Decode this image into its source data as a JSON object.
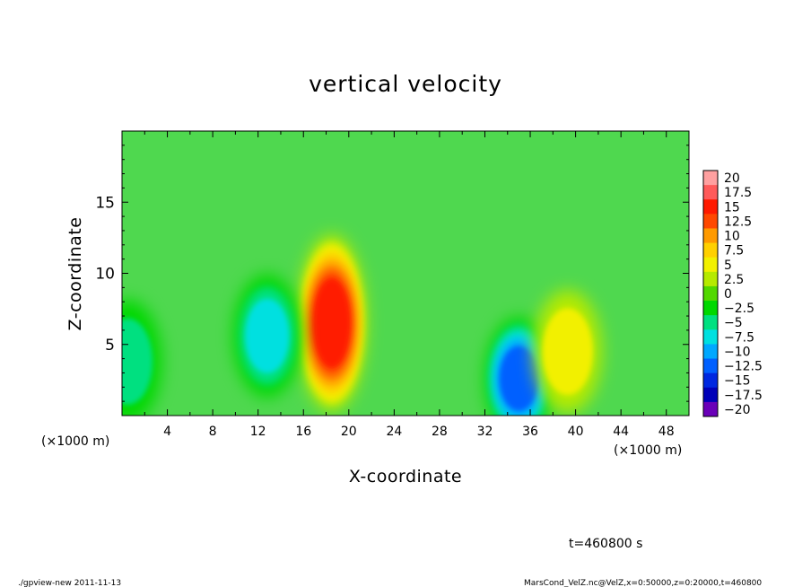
{
  "chart_data": {
    "type": "heatmap",
    "title": "vertical velocity",
    "xlabel": "X-coordinate",
    "ylabel": "Z-coordinate",
    "x_unit": "(×1000 m)",
    "y_unit": "(×1000 m)",
    "xlim": [
      0,
      50
    ],
    "ylim": [
      0,
      20
    ],
    "x_ticks": [
      4,
      8,
      12,
      16,
      20,
      24,
      28,
      32,
      36,
      40,
      44,
      48
    ],
    "y_ticks": [
      5,
      10,
      15
    ],
    "colorbar": {
      "levels": [
        "20",
        "17.5",
        "15",
        "12.5",
        "10",
        "7.5",
        "5",
        "2.5",
        "0",
        "−2.5",
        "−5",
        "−7.5",
        "−10",
        "−12.5",
        "−15",
        "−17.5",
        "−20"
      ],
      "colors": [
        "#ffa0a0",
        "#ff5a5a",
        "#ff1a00",
        "#ff4800",
        "#ff9a00",
        "#ffd000",
        "#f2f000",
        "#b6ea00",
        "#52d800",
        "#00d800",
        "#00e080",
        "#00e0e0",
        "#00a8ff",
        "#0060ff",
        "#0028e0",
        "#0000b8",
        "#6a00b8"
      ]
    },
    "background_color": "#4fd84f",
    "features": [
      {
        "type": "updraft",
        "x": 18.5,
        "z": 6.5,
        "peak": 15
      },
      {
        "type": "downdraft",
        "x": 35,
        "z": 2.6,
        "peak": -12
      },
      {
        "type": "downdraft",
        "x": 12.8,
        "z": 5.6,
        "peak": -7.5
      },
      {
        "type": "updraft",
        "x": 39.3,
        "z": 4.5,
        "peak": 6
      },
      {
        "type": "downdraft",
        "x": 0.5,
        "z": 3.8,
        "peak": -5
      }
    ]
  },
  "annotations": {
    "time": "t=460800 s",
    "footer_left": "./gpview-new   2011-11-13",
    "footer_right": "MarsCond_VelZ.nc@VelZ,x=0:50000,z=0:20000,t=460800"
  }
}
